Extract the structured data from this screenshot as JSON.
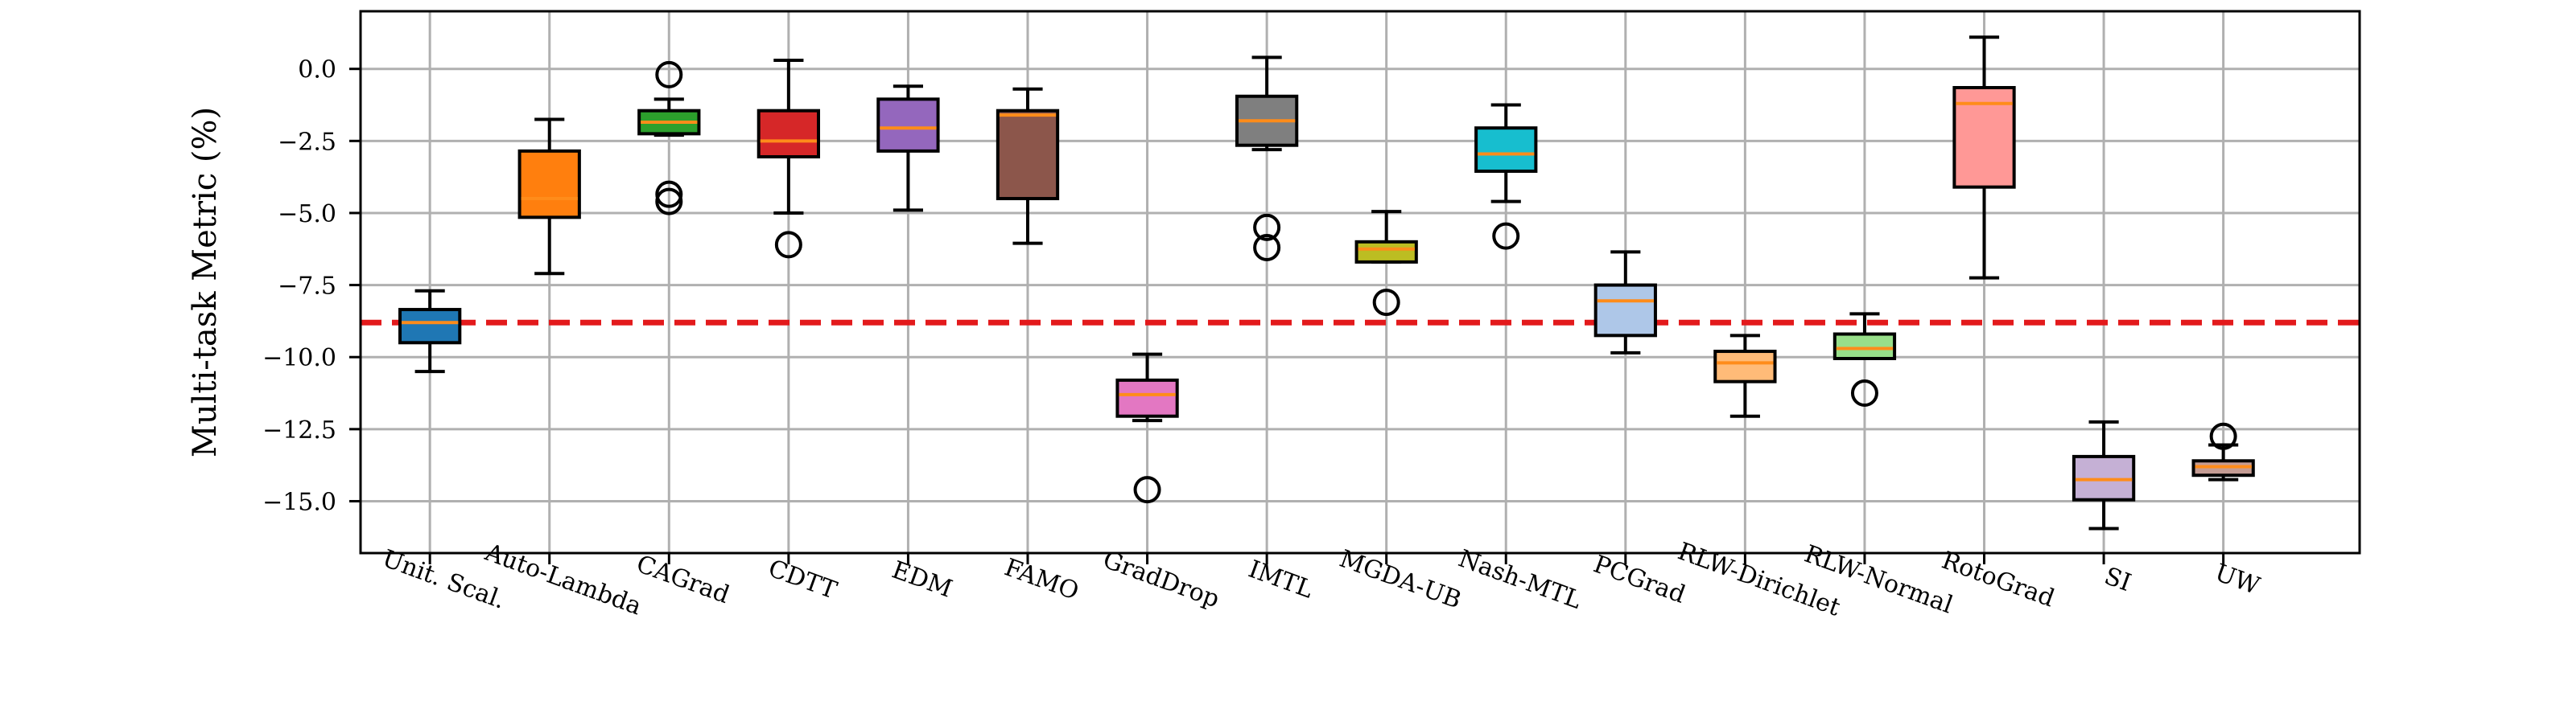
{
  "chart_data": {
    "type": "boxplot",
    "title": "",
    "xlabel": "",
    "ylabel": "Multi-task Metric (%)",
    "ylim": [
      -16.8,
      2.0
    ],
    "yticks": [
      0.0,
      -2.5,
      -5.0,
      -7.5,
      -10.0,
      -12.5,
      -15.0
    ],
    "ytick_labels": [
      "0.0",
      "−2.5",
      "−5.0",
      "−7.5",
      "−10.0",
      "−12.5",
      "−15.0"
    ],
    "grid": true,
    "reference_line": {
      "value": -8.8,
      "color": "#e31a1c",
      "style": "dashed"
    },
    "median_color": "#ff8c1a",
    "categories": [
      "Unit. Scal.",
      "Auto-Lambda",
      "CAGrad",
      "CDTT",
      "EDM",
      "FAMO",
      "GradDrop",
      "IMTL",
      "MGDA-UB",
      "Nash-MTL",
      "PCGrad",
      "RLW-Dirichlet",
      "RLW-Normal",
      "RotoGrad",
      "SI",
      "UW"
    ],
    "boxes": [
      {
        "name": "Unit. Scal.",
        "color": "#1f77b4",
        "whislo": -10.5,
        "q1": -9.5,
        "med": -8.8,
        "q3": -8.35,
        "whishi": -7.7,
        "fliers": []
      },
      {
        "name": "Auto-Lambda",
        "color": "#ff7f0e",
        "whislo": -7.1,
        "q1": -5.15,
        "med": -4.5,
        "q3": -2.85,
        "whishi": -1.75,
        "fliers": []
      },
      {
        "name": "CAGrad",
        "color": "#2ca02c",
        "whislo": -2.3,
        "q1": -2.25,
        "med": -1.85,
        "q3": -1.45,
        "whishi": -1.05,
        "fliers": [
          -0.2,
          -4.35,
          -4.6
        ]
      },
      {
        "name": "CDTT",
        "color": "#d62728",
        "whislo": -5.0,
        "q1": -3.05,
        "med": -2.5,
        "q3": -1.45,
        "whishi": 0.3,
        "fliers": [
          -6.1
        ]
      },
      {
        "name": "EDM",
        "color": "#9467bd",
        "whislo": -4.9,
        "q1": -2.85,
        "med": -2.05,
        "q3": -1.05,
        "whishi": -0.6,
        "fliers": []
      },
      {
        "name": "FAMO",
        "color": "#8c564b",
        "whislo": -6.05,
        "q1": -4.5,
        "med": -1.6,
        "q3": -1.45,
        "whishi": -0.7,
        "fliers": []
      },
      {
        "name": "GradDrop",
        "color": "#e377c2",
        "whislo": -12.2,
        "q1": -12.05,
        "med": -11.3,
        "q3": -10.8,
        "whishi": -9.9,
        "fliers": [
          -14.6
        ]
      },
      {
        "name": "IMTL",
        "color": "#7f7f7f",
        "whislo": -2.8,
        "q1": -2.65,
        "med": -1.8,
        "q3": -0.95,
        "whishi": 0.4,
        "fliers": [
          -5.5,
          -6.2
        ]
      },
      {
        "name": "MGDA-UB",
        "color": "#bcbd22",
        "whislo": -6.7,
        "q1": -6.7,
        "med": -6.25,
        "q3": -6.0,
        "whishi": -4.95,
        "fliers": [
          -8.1
        ]
      },
      {
        "name": "Nash-MTL",
        "color": "#17becf",
        "whislo": -4.6,
        "q1": -3.55,
        "med": -2.95,
        "q3": -2.05,
        "whishi": -1.25,
        "fliers": [
          -5.8
        ]
      },
      {
        "name": "PCGrad",
        "color": "#aec7e8",
        "whislo": -9.85,
        "q1": -9.25,
        "med": -8.05,
        "q3": -7.5,
        "whishi": -6.35,
        "fliers": []
      },
      {
        "name": "RLW-Dirichlet",
        "color": "#ffbb78",
        "whislo": -12.05,
        "q1": -10.85,
        "med": -10.2,
        "q3": -9.8,
        "whishi": -9.25,
        "fliers": []
      },
      {
        "name": "RLW-Normal",
        "color": "#98df8a",
        "whislo": -10.05,
        "q1": -10.05,
        "med": -9.7,
        "q3": -9.2,
        "whishi": -8.5,
        "fliers": [
          -11.25
        ]
      },
      {
        "name": "RotoGrad",
        "color": "#ff9896",
        "whislo": -7.25,
        "q1": -4.1,
        "med": -1.2,
        "q3": -0.65,
        "whishi": 1.1,
        "fliers": []
      },
      {
        "name": "SI",
        "color": "#c5b0d5",
        "whislo": -15.95,
        "q1": -14.95,
        "med": -14.25,
        "q3": -13.45,
        "whishi": -12.25,
        "fliers": []
      },
      {
        "name": "UW",
        "color": "#c49c94",
        "whislo": -14.25,
        "q1": -14.1,
        "med": -13.8,
        "q3": -13.6,
        "whishi": -13.05,
        "fliers": [
          -12.75
        ]
      }
    ]
  }
}
